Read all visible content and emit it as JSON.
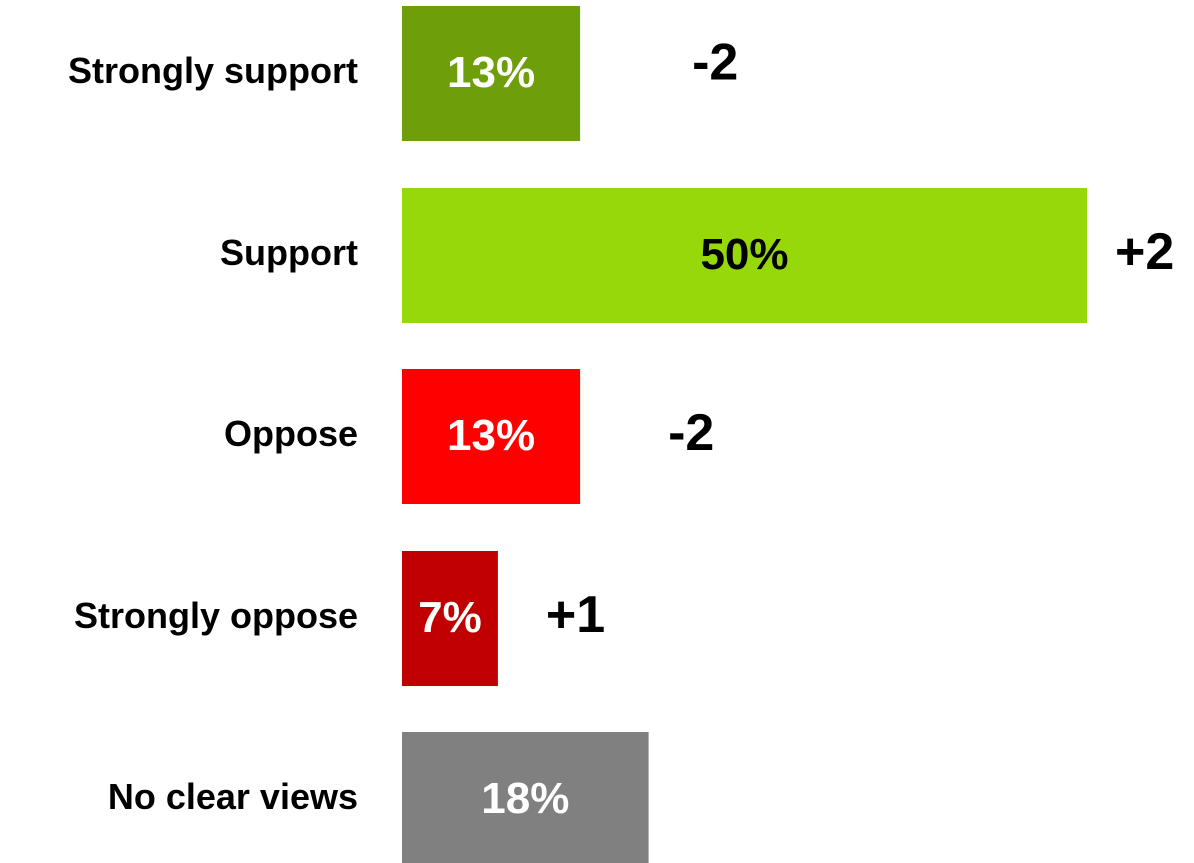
{
  "chart_data": {
    "type": "bar",
    "orientation": "horizontal",
    "categories": [
      "Strongly support",
      "Support",
      "Oppose",
      "Strongly oppose",
      "No clear views"
    ],
    "values": [
      13,
      50,
      13,
      7,
      18
    ],
    "value_labels": [
      "13%",
      "50%",
      "13%",
      "7%",
      "18%"
    ],
    "change_labels": [
      "-2",
      "+2",
      "-2",
      "+1",
      ""
    ],
    "colors": [
      "#6e9e0a",
      "#97d80a",
      "#ff0000",
      "#c00000",
      "#808080"
    ],
    "value_label_colors": [
      "#ffffff",
      "#000000",
      "#ffffff",
      "#ffffff",
      "#ffffff"
    ],
    "xlim": [
      0,
      50
    ],
    "title": "",
    "xlabel": "",
    "ylabel": "",
    "grid": false,
    "legend": "none"
  }
}
